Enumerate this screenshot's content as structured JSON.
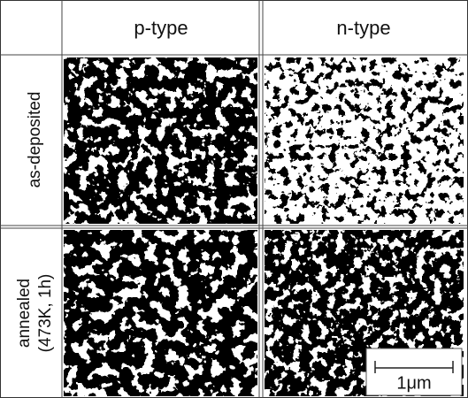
{
  "columns": [
    "p-type",
    "n-type"
  ],
  "rows": [
    {
      "label_lines": [
        "as-deposited"
      ]
    },
    {
      "label_lines": [
        "annealed",
        "(473K, 1h)"
      ]
    }
  ],
  "scale_bar": "1μm"
}
